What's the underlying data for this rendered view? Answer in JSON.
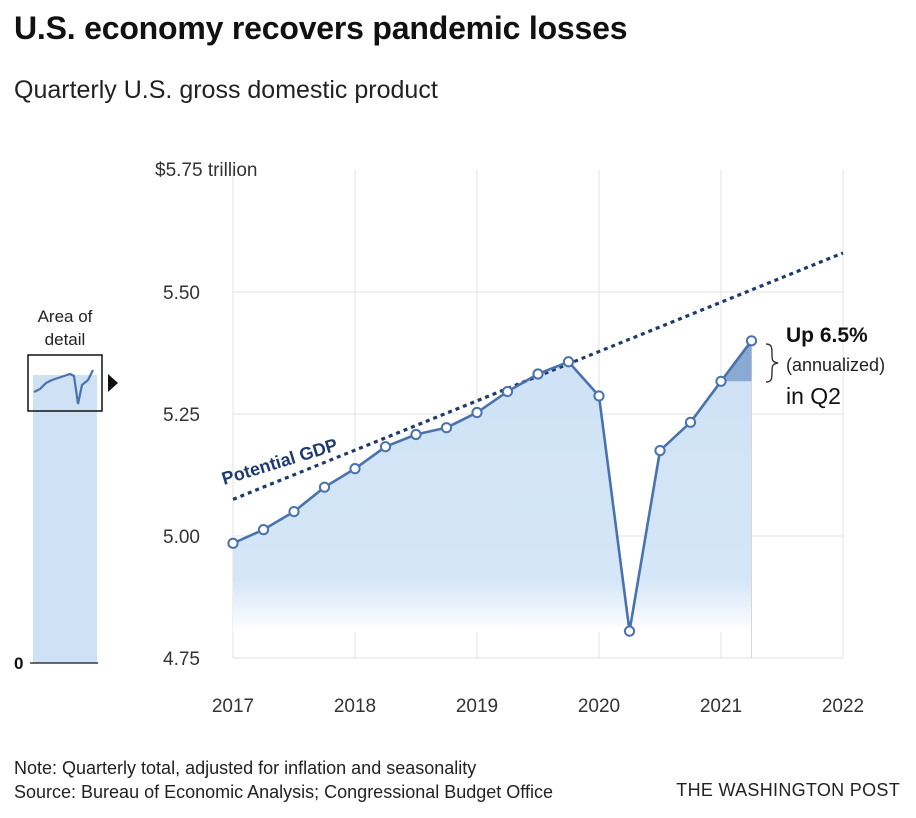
{
  "title": "U.S. economy recovers pandemic losses",
  "subtitle": "Quarterly U.S. gross domestic product",
  "note": "Note: Quarterly total, adjusted for inflation and seasonality",
  "source": "Source: Bureau of Economic Analysis; Congressional Budget Office",
  "credit": "THE WASHINGTON POST",
  "inset": {
    "label_line1": "Area of",
    "label_line2": "detail",
    "zero_label": "0"
  },
  "annotation": {
    "headline": "Up 6.5%",
    "detail": "(annualized)",
    "period": "in Q2"
  },
  "colors": {
    "line": "#4a72ad",
    "area": "#cfe2f5",
    "potential": "#1f3a6e",
    "grid": "#e2e2e2"
  },
  "chart_data": {
    "type": "line",
    "ylabel": "",
    "xlabel": "",
    "ylim": [
      4.75,
      5.75
    ],
    "xlim": [
      2017,
      2022
    ],
    "y_ticks": [
      {
        "value": 5.75,
        "label": "$5.75 trillion"
      },
      {
        "value": 5.5,
        "label": "5.50"
      },
      {
        "value": 5.25,
        "label": "5.25"
      },
      {
        "value": 5.0,
        "label": "5.00"
      },
      {
        "value": 4.75,
        "label": "4.75"
      }
    ],
    "x_ticks": [
      {
        "value": 2017,
        "label": "2017"
      },
      {
        "value": 2018,
        "label": "2018"
      },
      {
        "value": 2019,
        "label": "2019"
      },
      {
        "value": 2020,
        "label": "2020"
      },
      {
        "value": 2021,
        "label": "2021"
      },
      {
        "value": 2022,
        "label": "2022"
      }
    ],
    "grid": true,
    "series": [
      {
        "name": "",
        "x": [
          2017.0,
          2017.25,
          2017.5,
          2017.75,
          2018.0,
          2018.25,
          2018.5,
          2018.75,
          2019.0,
          2019.25,
          2019.5,
          2019.75,
          2020.0,
          2020.25,
          2020.5,
          2020.75,
          2021.0,
          2021.25
        ],
        "values": [
          4.985,
          5.013,
          5.05,
          5.1,
          5.138,
          5.183,
          5.208,
          5.222,
          5.253,
          5.296,
          5.332,
          5.357,
          5.287,
          4.805,
          5.175,
          5.233,
          5.317,
          5.4
        ]
      },
      {
        "name": "Potential GDP",
        "x": [
          2017.0,
          2022.0
        ],
        "values": [
          5.075,
          5.58
        ]
      }
    ]
  }
}
